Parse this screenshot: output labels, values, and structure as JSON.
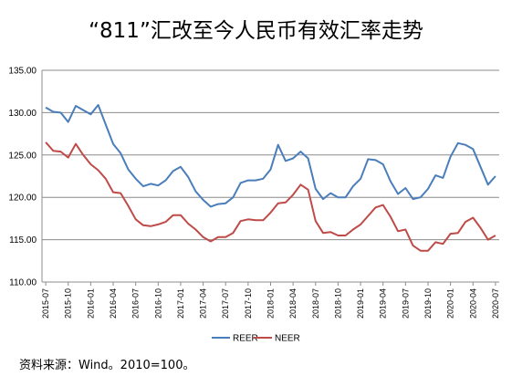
{
  "title": "“811”汇改至今人民币有效汇率走势",
  "note": "资料来源：Wind。2010=100。",
  "chart_data": {
    "type": "line",
    "title": "“811”汇改至今人民币有效汇率走势",
    "xlabel": "",
    "ylabel": "",
    "ylim": [
      110,
      135
    ],
    "yticks": [
      "110.00",
      "115.00",
      "120.00",
      "125.00",
      "130.00",
      "135.00"
    ],
    "grid": "horizontal",
    "legend": "bottom",
    "x": [
      "2015-07",
      "2015-08",
      "2015-09",
      "2015-10",
      "2015-11",
      "2015-12",
      "2016-01",
      "2016-02",
      "2016-03",
      "2016-04",
      "2016-05",
      "2016-06",
      "2016-07",
      "2016-08",
      "2016-09",
      "2016-10",
      "2016-11",
      "2016-12",
      "2017-01",
      "2017-02",
      "2017-03",
      "2017-04",
      "2017-05",
      "2017-06",
      "2017-07",
      "2017-08",
      "2017-09",
      "2017-10",
      "2017-11",
      "2017-12",
      "2018-01",
      "2018-02",
      "2018-03",
      "2018-04",
      "2018-05",
      "2018-06",
      "2018-07",
      "2018-08",
      "2018-09",
      "2018-10",
      "2018-11",
      "2018-12",
      "2019-01",
      "2019-02",
      "2019-03",
      "2019-04",
      "2019-05",
      "2019-06",
      "2019-07",
      "2019-08",
      "2019-09",
      "2019-10",
      "2019-11",
      "2019-12",
      "2020-01",
      "2020-02",
      "2020-03",
      "2020-04",
      "2020-05",
      "2020-06",
      "2020-07"
    ],
    "xticks": [
      "2015-07",
      "2015-10",
      "2016-01",
      "2016-04",
      "2016-07",
      "2016-10",
      "2017-01",
      "2017-04",
      "2017-07",
      "2017-10",
      "2018-01",
      "2018-04",
      "2018-07",
      "2018-10",
      "2019-01",
      "2019-04",
      "2019-07",
      "2019-10",
      "2020-01",
      "2020-04",
      "2020-07"
    ],
    "series": [
      {
        "name": "REER",
        "color": "#4a7ebb",
        "values": [
          130.6,
          130.1,
          130.0,
          128.9,
          130.8,
          130.3,
          129.8,
          130.9,
          128.6,
          126.3,
          125.2,
          123.3,
          122.2,
          121.3,
          121.6,
          121.4,
          122.0,
          123.1,
          123.6,
          122.4,
          120.7,
          119.7,
          118.9,
          119.2,
          119.3,
          120.0,
          121.7,
          122.0,
          122.0,
          122.2,
          123.3,
          126.2,
          124.3,
          124.6,
          125.4,
          124.6,
          121.0,
          119.8,
          120.5,
          120.0,
          120.0,
          121.3,
          122.2,
          124.5,
          124.4,
          123.9,
          121.9,
          120.4,
          121.1,
          119.8,
          120.0,
          121.0,
          122.6,
          122.3,
          124.8,
          126.4,
          126.2,
          125.7,
          123.6,
          121.5,
          122.5
        ]
      },
      {
        "name": "NEER",
        "color": "#be4b48",
        "values": [
          126.5,
          125.5,
          125.4,
          124.7,
          126.3,
          125.0,
          123.9,
          123.2,
          122.2,
          120.6,
          120.5,
          119.0,
          117.4,
          116.7,
          116.6,
          116.8,
          117.1,
          117.9,
          117.9,
          116.9,
          116.2,
          115.3,
          114.8,
          115.3,
          115.3,
          115.8,
          117.2,
          117.4,
          117.3,
          117.3,
          118.2,
          119.3,
          119.4,
          120.3,
          121.5,
          120.9,
          117.2,
          115.8,
          115.9,
          115.5,
          115.5,
          116.2,
          116.8,
          117.8,
          118.8,
          119.1,
          117.7,
          116.0,
          116.2,
          114.3,
          113.7,
          113.7,
          114.7,
          114.5,
          115.7,
          115.8,
          117.1,
          117.6,
          116.4,
          115.0,
          115.5
        ]
      }
    ]
  }
}
